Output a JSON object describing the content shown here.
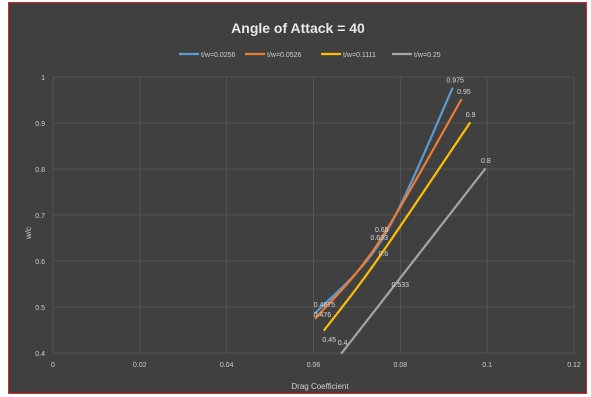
{
  "chart_data": {
    "type": "line",
    "title": "Angle of Attack = 40",
    "xlabel": "Drag Coefficient",
    "ylabel": "w/c",
    "xlim": [
      0,
      0.12
    ],
    "ylim": [
      0.4,
      1.0
    ],
    "xticks": [
      "0",
      "0.02",
      "0.04",
      "0.06",
      "0.08",
      "0.1",
      "0.12"
    ],
    "yticks": [
      "0.4",
      "0.5",
      "0.6",
      "0.7",
      "0.8",
      "0.9",
      "1"
    ],
    "grid": "horizontal-and-vertical",
    "legend_position": "top",
    "series": [
      {
        "name": "t/w=0.0256",
        "color": "#5b9bd5",
        "x": [
          0.0605,
          0.076,
          0.092
        ],
        "y": [
          0.4875,
          0.65,
          0.975
        ],
        "labels": [
          "0.4875",
          "",
          "0.975"
        ]
      },
      {
        "name": "t/w=0.0526",
        "color": "#ed7d31",
        "x": [
          0.0605,
          0.0745,
          0.094
        ],
        "y": [
          0.476,
          0.633,
          0.95
        ],
        "labels": [
          "0.476",
          "0.633",
          "0.95"
        ]
      },
      {
        "name": "t/w=0.1111",
        "color": "#ffc000",
        "x": [
          0.0625,
          0.0745,
          0.096
        ],
        "y": [
          0.45,
          0.6,
          0.9
        ],
        "labels": [
          "0.45",
          "0.6",
          "0.9"
        ]
      },
      {
        "name": "t/w=0.25",
        "color": "#a5a5a5",
        "x": [
          0.0665,
          0.0775,
          0.0995
        ],
        "y": [
          0.4,
          0.533,
          0.8
        ],
        "labels": [
          "0.4",
          "0.533",
          "0.8"
        ]
      }
    ],
    "extra_labels": [
      {
        "text": "0.65",
        "series": 0,
        "point": 1
      }
    ]
  }
}
